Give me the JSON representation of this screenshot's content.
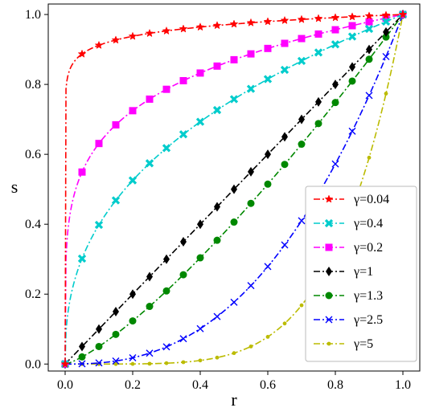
{
  "chart_data": {
    "type": "line",
    "title": "",
    "xlabel": "r",
    "ylabel": "s",
    "xlim": [
      -0.05,
      1.05
    ],
    "ylim": [
      -0.02,
      1.03
    ],
    "xticks": [
      "0.0",
      "0.2",
      "0.4",
      "0.6",
      "0.8",
      "1.0"
    ],
    "yticks": [
      "0.0",
      "0.2",
      "0.4",
      "0.6",
      "0.8",
      "1.0"
    ],
    "grid": false,
    "legend_position": "lower-right",
    "x": [
      0,
      0.05,
      0.1,
      0.15,
      0.2,
      0.25,
      0.3,
      0.35,
      0.4,
      0.45,
      0.5,
      0.55,
      0.6,
      0.65,
      0.7,
      0.75,
      0.8,
      0.85,
      0.9,
      0.95,
      1.0
    ],
    "series": [
      {
        "name": "γ=0.04",
        "gamma": 0.04,
        "color": "#ff0000",
        "marker": "star",
        "dash": "8,3,2,3"
      },
      {
        "name": "γ=0.4",
        "gamma": 0.4,
        "color": "#00cccc",
        "marker": "x-thick",
        "dash": "8,3,2,3"
      },
      {
        "name": "γ=0.2",
        "gamma": 0.2,
        "color": "#ff00ff",
        "marker": "square",
        "dash": "8,3,2,3"
      },
      {
        "name": "γ=1",
        "gamma": 1,
        "color": "#000000",
        "marker": "diamond",
        "dash": "8,3,2,3"
      },
      {
        "name": "γ=1.3",
        "gamma": 1.3,
        "color": "#008800",
        "marker": "circle",
        "dash": "8,3,2,3"
      },
      {
        "name": "γ=2.5",
        "gamma": 2.5,
        "color": "#0000ff",
        "marker": "x",
        "dash": "8,3,2,3"
      },
      {
        "name": "γ=5",
        "gamma": 5,
        "color": "#bbbb00",
        "marker": "dot",
        "dash": "8,3,2,3"
      }
    ]
  }
}
